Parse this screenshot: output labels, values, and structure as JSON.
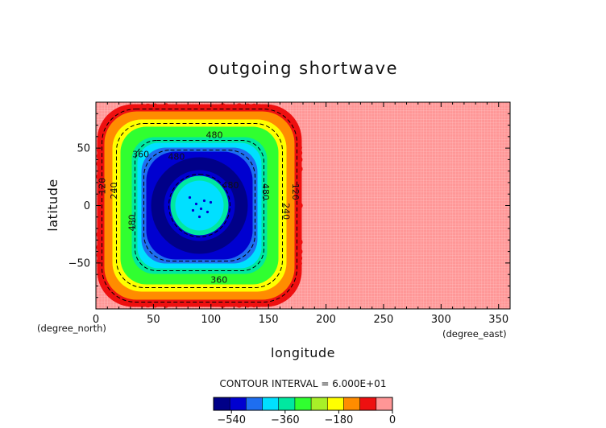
{
  "chart_data": {
    "type": "contour",
    "title": "outgoing shortwave",
    "xlabel": "longitude",
    "ylabel": "latitude",
    "x_units": "(degree_east)",
    "y_units": "(degree_north)",
    "xlim": [
      0,
      360
    ],
    "ylim": [
      -90,
      90
    ],
    "x_ticks": [
      0,
      50,
      100,
      150,
      200,
      250,
      300,
      350
    ],
    "y_ticks": [
      -50,
      0,
      50
    ],
    "contour_interval_text": "CONTOUR INTERVAL = 6.000E+01",
    "colorbar": {
      "levels": [
        -600,
        -540,
        -480,
        -420,
        -360,
        -300,
        -240,
        -180,
        -120,
        -60,
        0
      ],
      "tick_labels": [
        -540,
        -360,
        -180,
        0
      ],
      "colors": [
        "#000088",
        "#0000d0",
        "#1e6ef0",
        "#00e0ff",
        "#00e8a0",
        "#30ff30",
        "#a8f028",
        "#ffff00",
        "#ff8c00",
        "#ee1010",
        "#ff9696"
      ]
    },
    "field": {
      "description_values_center_lon": 90,
      "center_lat": 0,
      "background_value": 0,
      "rings": [
        {
          "level": -60,
          "color": "#ee1010"
        },
        {
          "level": -120,
          "color": "#ff8c00"
        },
        {
          "level": -180,
          "color": "#ffff00"
        },
        {
          "level": -240,
          "color": "#30ff30"
        },
        {
          "level": -300,
          "color": "#00e8a0"
        },
        {
          "level": -360,
          "color": "#00e0ff"
        },
        {
          "level": -420,
          "color": "#1e6ef0"
        },
        {
          "level": -480,
          "color": "#0000d0"
        },
        {
          "level": -540,
          "color": "#000088"
        },
        {
          "level": -480,
          "color": "#0000d0"
        },
        {
          "level": -420,
          "color": "#00e8a0"
        },
        {
          "level": -360,
          "color": "#00e0ff"
        }
      ]
    },
    "contour_labels": [
      {
        "text": "480",
        "lon": 103,
        "lat": 61
      },
      {
        "text": "480",
        "lon": 70,
        "lat": 42
      },
      {
        "text": "360",
        "lon": 39,
        "lat": 44
      },
      {
        "text": "480",
        "lon": 117,
        "lat": 17
      },
      {
        "text": "480",
        "lon": 147,
        "lat": 12
      },
      {
        "text": "120",
        "lon": 173,
        "lat": 12
      },
      {
        "text": "120",
        "lon": 6,
        "lat": 17
      },
      {
        "text": "240",
        "lon": 16,
        "lat": 13
      },
      {
        "text": "240",
        "lon": 165,
        "lat": -5
      },
      {
        "text": "480",
        "lon": 32,
        "lat": -15
      },
      {
        "text": "360",
        "lon": 107,
        "lat": -65
      }
    ]
  }
}
